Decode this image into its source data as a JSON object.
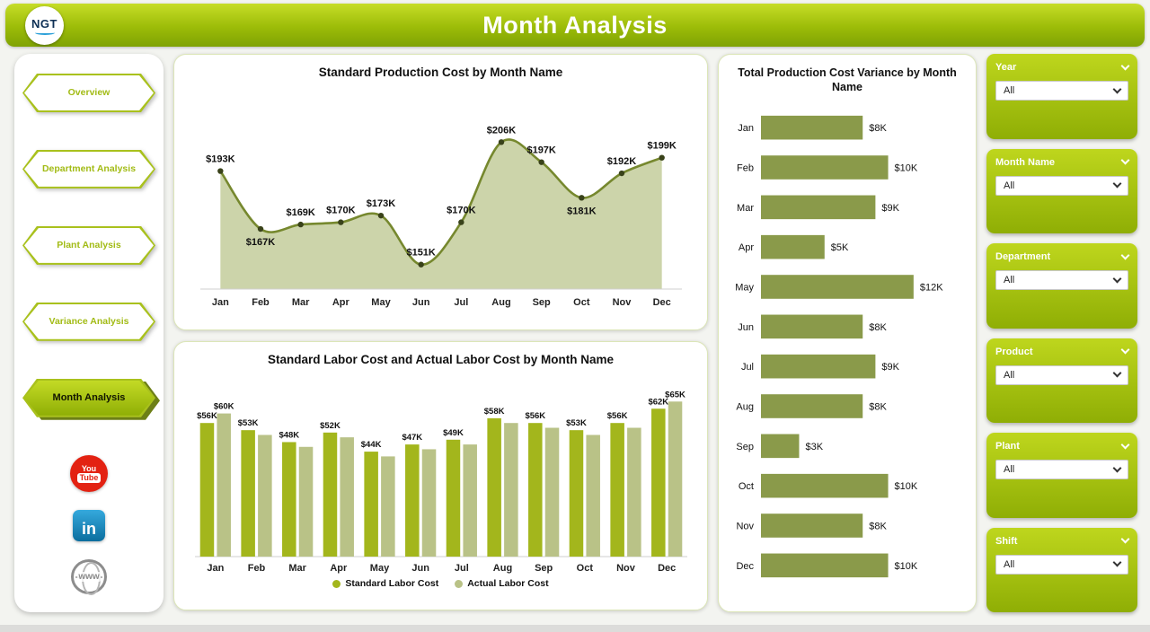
{
  "header": {
    "title": "Month Analysis",
    "logo_text": "NGT"
  },
  "sidebar": {
    "nav": [
      {
        "label": "Overview",
        "active": false
      },
      {
        "label": "Department Analysis",
        "active": false
      },
      {
        "label": "Plant Analysis",
        "active": false
      },
      {
        "label": "Variance Analysis",
        "active": false
      },
      {
        "label": "Month Analysis",
        "active": true
      }
    ],
    "social": [
      {
        "name": "youtube",
        "you": "You",
        "tube": "Tube"
      },
      {
        "name": "linkedin",
        "label": "in"
      },
      {
        "name": "web",
        "label": "www"
      }
    ]
  },
  "slicers": [
    {
      "title": "Year",
      "value": "All"
    },
    {
      "title": "Month Name",
      "value": "All"
    },
    {
      "title": "Department",
      "value": "All"
    },
    {
      "title": "Product",
      "value": "All"
    },
    {
      "title": "Plant",
      "value": "All"
    },
    {
      "title": "Shift",
      "value": "All"
    }
  ],
  "chart_data": [
    {
      "type": "area",
      "title": "Standard Production Cost by Month Name",
      "categories": [
        "Jan",
        "Feb",
        "Mar",
        "Apr",
        "May",
        "Jun",
        "Jul",
        "Aug",
        "Sep",
        "Oct",
        "Nov",
        "Dec"
      ],
      "values": [
        193,
        167,
        169,
        170,
        173,
        151,
        170,
        206,
        197,
        181,
        192,
        199
      ],
      "labels": [
        "$193K",
        "$167K",
        "$169K",
        "$170K",
        "$173K",
        "$151K",
        "$170K",
        "$206K",
        "$197K",
        "$181K",
        "$192K",
        "$199K"
      ],
      "label_positions": [
        "above",
        "below",
        "above",
        "above",
        "above",
        "above",
        "above",
        "above",
        "above",
        "below",
        "above",
        "above"
      ],
      "ylim": [
        140,
        215
      ],
      "line_color": "#76882e",
      "fill_color": "#ccd4aa",
      "marker_color": "#39421a"
    },
    {
      "type": "bar",
      "title": "Standard Labor Cost and Actual Labor Cost by Month Name",
      "categories": [
        "Jan",
        "Feb",
        "Mar",
        "Apr",
        "May",
        "Jun",
        "Jul",
        "Aug",
        "Sep",
        "Oct",
        "Nov",
        "Dec"
      ],
      "series": [
        {
          "name": "Standard Labor Cost",
          "color": "#a3b61c",
          "values": [
            56,
            53,
            48,
            52,
            44,
            47,
            49,
            58,
            56,
            53,
            56,
            62
          ],
          "labels": [
            "$56K",
            "$53K",
            "$48K",
            "$52K",
            "$44K",
            "$47K",
            "$49K",
            "$58K",
            "$56K",
            "$53K",
            "$56K",
            "$62K"
          ]
        },
        {
          "name": "Actual Labor Cost",
          "color": "#b9c287",
          "values": [
            60,
            51,
            46,
            50,
            42,
            45,
            47,
            56,
            54,
            51,
            54,
            65
          ],
          "labels": [
            "$60K",
            null,
            null,
            null,
            null,
            null,
            null,
            null,
            null,
            null,
            null,
            "$65K"
          ]
        }
      ],
      "ylim": [
        0,
        70
      ],
      "legend_position": "bottom"
    },
    {
      "type": "hbar",
      "title": "Total Production Cost Variance by Month Name",
      "categories": [
        "Jan",
        "Feb",
        "Mar",
        "Apr",
        "May",
        "Jun",
        "Jul",
        "Aug",
        "Sep",
        "Oct",
        "Nov",
        "Dec"
      ],
      "values": [
        8,
        10,
        9,
        5,
        12,
        8,
        9,
        8,
        3,
        10,
        8,
        10
      ],
      "labels": [
        "$8K",
        "$10K",
        "$9K",
        "$5K",
        "$12K",
        "$8K",
        "$9K",
        "$8K",
        "$3K",
        "$10K",
        "$8K",
        "$10K"
      ],
      "xlim": [
        0,
        13
      ],
      "color": "#8a9a4a"
    }
  ]
}
